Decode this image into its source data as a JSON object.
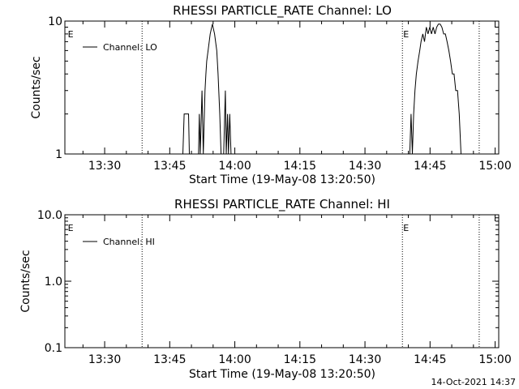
{
  "footer_timestamp": "14-Oct-2021 14:37",
  "chart_data": [
    {
      "type": "line",
      "title": "RHESSI PARTICLE_RATE Channel: LO",
      "xlabel": "Start Time (19-May-08 13:20:50)",
      "ylabel": "Counts/sec",
      "x_tick_labels": [
        "13:30",
        "13:45",
        "14:00",
        "14:15",
        "14:30",
        "14:45",
        "15:00"
      ],
      "x_ticks_minutes": [
        9.17,
        24.17,
        39.17,
        54.17,
        69.17,
        84.17,
        99.17
      ],
      "xlim_minutes": [
        0,
        100
      ],
      "y_scale": "log",
      "ylim": [
        1,
        10
      ],
      "y_tick_labels": [
        "1",
        "10"
      ],
      "y_tick_values": [
        1,
        10
      ],
      "legend": {
        "entries": [
          "Channel: LO"
        ],
        "position": "top-left"
      },
      "event_markers": {
        "label": "E",
        "x_minutes": [
          0.5,
          17.8,
          77.8,
          95.5
        ],
        "labeled_at": [
          0.5,
          77.8
        ]
      },
      "series": [
        {
          "name": "Channel: LO",
          "x": [
            27.2,
            27.5,
            27.7,
            28.5,
            28.7,
            29.1,
            30.8,
            31.0,
            31.2,
            31.6,
            31.9,
            32.3,
            32.5,
            32.7,
            33.0,
            33.5,
            34.0,
            34.5,
            35.0,
            35.3,
            35.7,
            36.0,
            36.3,
            36.6,
            37.0,
            37.2,
            37.5,
            37.7,
            38.0,
            38.3,
            38.6,
            38.9,
            79.5,
            79.8,
            80.1,
            80.4,
            80.7,
            81.0,
            81.4,
            81.8,
            82.1,
            82.5,
            82.9,
            83.3,
            83.7,
            84.1,
            84.5,
            84.9,
            85.3,
            85.7,
            86.1,
            86.5,
            86.9,
            87.3,
            87.7,
            88.1,
            88.5,
            88.9,
            89.3,
            89.7,
            90.1,
            90.5,
            90.9,
            91.3,
            91.6
          ],
          "y": [
            1,
            2,
            2,
            2,
            1,
            1,
            1,
            2,
            1,
            3,
            1,
            3,
            4,
            5,
            6,
            8,
            9.5,
            8,
            6,
            4,
            2,
            1,
            1,
            1,
            3,
            1,
            2,
            1,
            2,
            1,
            1,
            1,
            1,
            2,
            1,
            2,
            3,
            4,
            5,
            6,
            7,
            8,
            7,
            9,
            8,
            9,
            8,
            9,
            8,
            9,
            9.5,
            9.5,
            9,
            8,
            8,
            7,
            6,
            5,
            4,
            4,
            3,
            3,
            2,
            1,
            1
          ]
        }
      ]
    },
    {
      "type": "line",
      "title": "RHESSI PARTICLE_RATE Channel: HI",
      "xlabel": "Start Time (19-May-08 13:20:50)",
      "ylabel": "Counts/sec",
      "x_tick_labels": [
        "13:30",
        "13:45",
        "14:00",
        "14:15",
        "14:30",
        "14:45",
        "15:00"
      ],
      "x_ticks_minutes": [
        9.17,
        24.17,
        39.17,
        54.17,
        69.17,
        84.17,
        99.17
      ],
      "xlim_minutes": [
        0,
        100
      ],
      "y_scale": "log",
      "ylim": [
        0.1,
        10
      ],
      "y_tick_labels": [
        "0.1",
        "1.0",
        "10.0"
      ],
      "y_tick_values": [
        0.1,
        1,
        10
      ],
      "legend": {
        "entries": [
          "Channel: HI"
        ],
        "position": "top-left"
      },
      "event_markers": {
        "label": "E",
        "x_minutes": [
          0.5,
          17.8,
          77.8,
          95.5
        ],
        "labeled_at": [
          0.5,
          77.8
        ]
      },
      "series": [
        {
          "name": "Channel: HI",
          "x": [],
          "y": []
        }
      ]
    }
  ]
}
